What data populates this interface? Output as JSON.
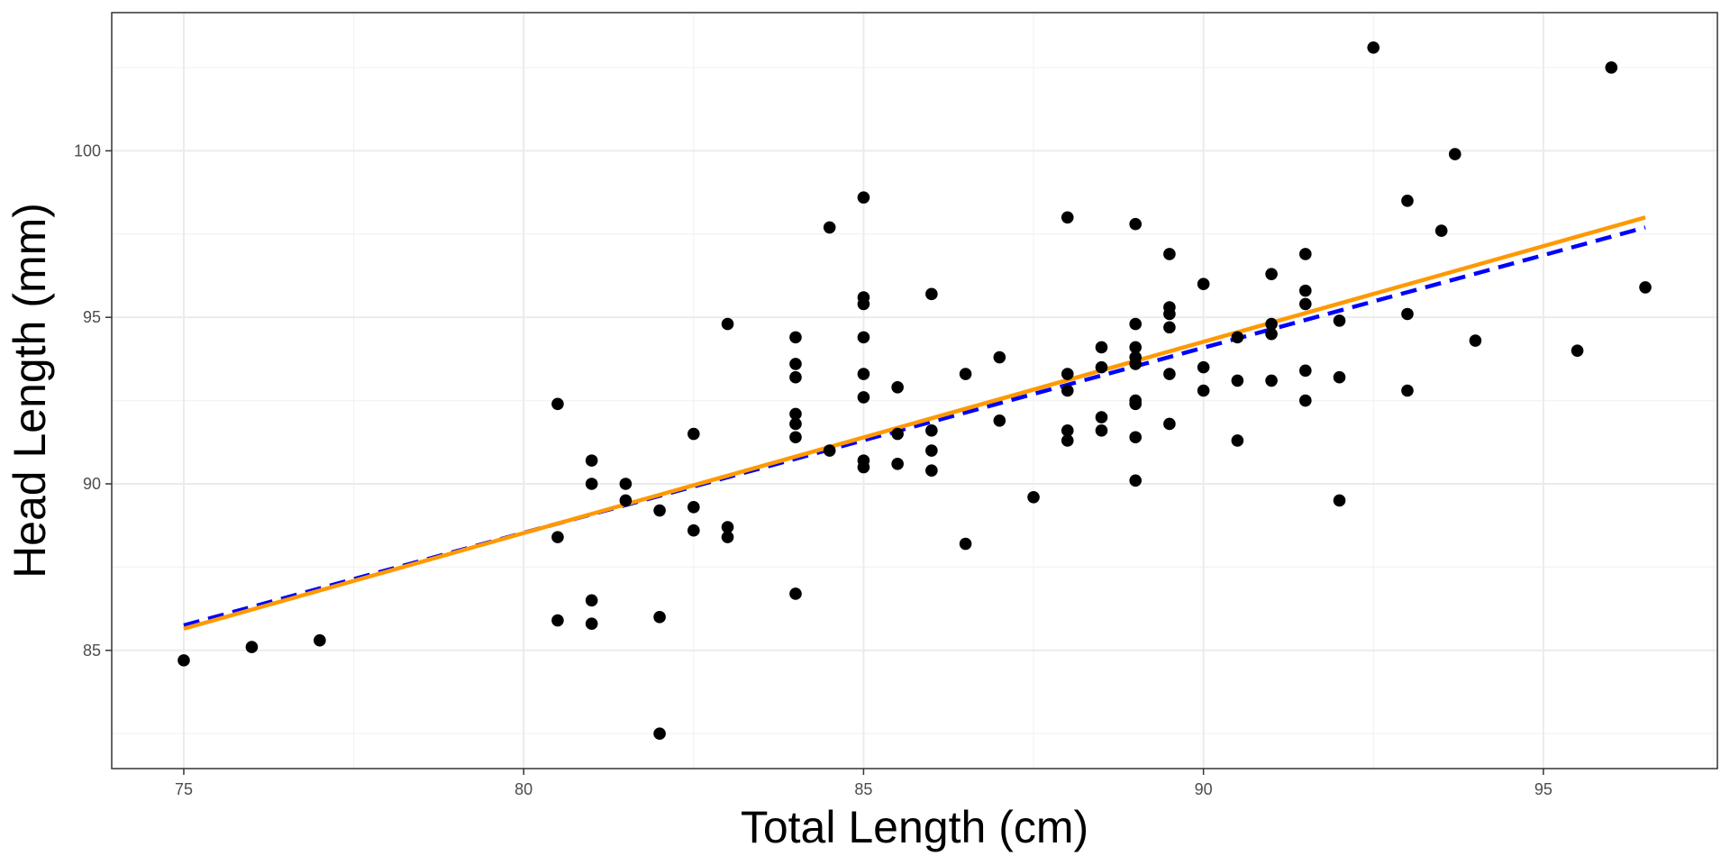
{
  "chart_data": {
    "type": "scatter",
    "title": "",
    "xlabel": "Total Length (cm)",
    "ylabel": "Head Length (mm)",
    "xlim": [
      73.94,
      97.56
    ],
    "ylim": [
      81.45,
      104.15
    ],
    "x_ticks": [
      75,
      80,
      85,
      90,
      95
    ],
    "y_ticks": [
      85,
      90,
      95,
      100
    ],
    "grid": true,
    "legend": "none",
    "colors": {
      "points": "#000000",
      "fit_dashed": "#0000ff",
      "fit_solid": "#ff9900",
      "grid_major": "#ebebeb",
      "grid_minor": "#f3f3f3",
      "panel_border": "#333333"
    },
    "points": [
      [
        75,
        84.7
      ],
      [
        76,
        85.1
      ],
      [
        77,
        85.3
      ],
      [
        80.5,
        92.4
      ],
      [
        80.5,
        88.4
      ],
      [
        80.5,
        85.9
      ],
      [
        81,
        90.7
      ],
      [
        81,
        90.0
      ],
      [
        81,
        86.5
      ],
      [
        81,
        85.8
      ],
      [
        81.5,
        90.0
      ],
      [
        81.5,
        89.5
      ],
      [
        82,
        89.2
      ],
      [
        82,
        86.0
      ],
      [
        82,
        82.5
      ],
      [
        82.5,
        91.5
      ],
      [
        82.5,
        89.3
      ],
      [
        82.5,
        88.6
      ],
      [
        83,
        94.8
      ],
      [
        83,
        88.7
      ],
      [
        83,
        88.4
      ],
      [
        84,
        94.4
      ],
      [
        84,
        93.6
      ],
      [
        84,
        93.2
      ],
      [
        84,
        92.1
      ],
      [
        84,
        91.8
      ],
      [
        84,
        91.4
      ],
      [
        84,
        86.7
      ],
      [
        84.5,
        97.7
      ],
      [
        84.5,
        91.0
      ],
      [
        85,
        98.6
      ],
      [
        85,
        95.6
      ],
      [
        85,
        95.4
      ],
      [
        85,
        94.4
      ],
      [
        85,
        93.3
      ],
      [
        85,
        92.6
      ],
      [
        85,
        90.7
      ],
      [
        85,
        90.5
      ],
      [
        85.5,
        92.9
      ],
      [
        85.5,
        91.5
      ],
      [
        85.5,
        90.6
      ],
      [
        86,
        95.7
      ],
      [
        86,
        91.6
      ],
      [
        86,
        91.0
      ],
      [
        86,
        90.4
      ],
      [
        86.5,
        93.3
      ],
      [
        86.5,
        88.2
      ],
      [
        87,
        93.8
      ],
      [
        87,
        91.9
      ],
      [
        87.5,
        89.6
      ],
      [
        88,
        98.0
      ],
      [
        88,
        93.3
      ],
      [
        88,
        92.8
      ],
      [
        88,
        91.6
      ],
      [
        88,
        91.3
      ],
      [
        88.5,
        94.1
      ],
      [
        88.5,
        93.5
      ],
      [
        88.5,
        92.0
      ],
      [
        88.5,
        91.6
      ],
      [
        89,
        97.8
      ],
      [
        89,
        94.8
      ],
      [
        89,
        94.1
      ],
      [
        89,
        93.8
      ],
      [
        89,
        93.6
      ],
      [
        89,
        92.5
      ],
      [
        89,
        92.4
      ],
      [
        89,
        91.4
      ],
      [
        89,
        90.1
      ],
      [
        89.5,
        96.9
      ],
      [
        89.5,
        95.3
      ],
      [
        89.5,
        95.1
      ],
      [
        89.5,
        94.7
      ],
      [
        89.5,
        93.3
      ],
      [
        89.5,
        91.8
      ],
      [
        90,
        96.0
      ],
      [
        90,
        93.5
      ],
      [
        90,
        92.8
      ],
      [
        90.5,
        94.4
      ],
      [
        90.5,
        93.1
      ],
      [
        90.5,
        91.3
      ],
      [
        91,
        96.3
      ],
      [
        91,
        94.8
      ],
      [
        91,
        94.5
      ],
      [
        91,
        93.1
      ],
      [
        91.5,
        96.9
      ],
      [
        91.5,
        95.8
      ],
      [
        91.5,
        95.4
      ],
      [
        91.5,
        93.4
      ],
      [
        91.5,
        92.5
      ],
      [
        92,
        94.9
      ],
      [
        92,
        93.2
      ],
      [
        92,
        89.5
      ],
      [
        92.5,
        103.1
      ],
      [
        93,
        98.5
      ],
      [
        93,
        95.1
      ],
      [
        93,
        92.8
      ],
      [
        93.5,
        97.6
      ],
      [
        93.7,
        99.9
      ],
      [
        94,
        94.3
      ],
      [
        95.5,
        94.0
      ],
      [
        96,
        102.5
      ],
      [
        96.5,
        95.9
      ]
    ],
    "lines": [
      {
        "style": "dashed",
        "color": "#0000ff",
        "x": [
          75,
          96.5
        ],
        "y": [
          85.75,
          97.7
        ]
      },
      {
        "style": "solid",
        "color": "#ff9900",
        "x": [
          75,
          96.5
        ],
        "y": [
          85.65,
          98.0
        ]
      }
    ]
  }
}
